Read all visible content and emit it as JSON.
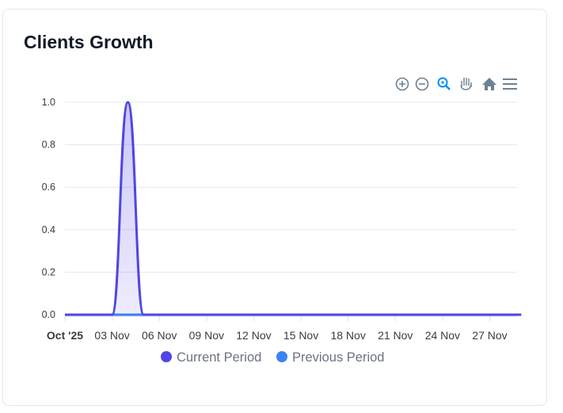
{
  "card": {
    "title": "Clients Growth"
  },
  "toolbar": {
    "icons": [
      "zoom-in-icon",
      "zoom-out-icon",
      "selection-zoom-icon",
      "pan-hand-icon",
      "home-reset-icon",
      "menu-icon"
    ],
    "active_color": "#008ffb",
    "color": "#6e8192"
  },
  "chart_data": {
    "type": "area",
    "title": "Clients Growth",
    "x": [
      "2025-10-31",
      "2025-11-01",
      "2025-11-02",
      "2025-11-03",
      "2025-11-04",
      "2025-11-05",
      "2025-11-06",
      "2025-11-07",
      "2025-11-08",
      "2025-11-09",
      "2025-11-10",
      "2025-11-11",
      "2025-11-12",
      "2025-11-13",
      "2025-11-14",
      "2025-11-15",
      "2025-11-16",
      "2025-11-17",
      "2025-11-18",
      "2025-11-19",
      "2025-11-20",
      "2025-11-21",
      "2025-11-22",
      "2025-11-23",
      "2025-11-24",
      "2025-11-25",
      "2025-11-26",
      "2025-11-27",
      "2025-11-28",
      "2025-11-29"
    ],
    "series": [
      {
        "name": "Current Period",
        "color": "#4f46e5",
        "values": [
          0,
          0,
          0,
          0,
          1,
          0,
          0,
          0,
          0,
          0,
          0,
          0,
          0,
          0,
          0,
          0,
          0,
          0,
          0,
          0,
          0,
          0,
          0,
          0,
          0,
          0,
          0,
          0,
          0,
          0
        ]
      },
      {
        "name": "Previous Period",
        "color": "#3b82f6",
        "values": [
          0,
          0,
          0,
          0,
          0,
          0,
          0,
          0,
          0,
          0,
          0,
          0,
          0,
          0,
          0,
          0,
          0,
          0,
          0,
          0,
          0,
          0,
          0,
          0,
          0,
          0,
          0,
          0,
          0,
          0
        ]
      }
    ],
    "xtick_labels": [
      "Oct '25",
      "03 Nov",
      "06 Nov",
      "09 Nov",
      "12 Nov",
      "15 Nov",
      "18 Nov",
      "21 Nov",
      "24 Nov",
      "27 Nov"
    ],
    "ytick_labels": [
      "0.0",
      "0.2",
      "0.4",
      "0.6",
      "0.8",
      "1.0"
    ],
    "ylim": [
      0,
      1
    ],
    "grid": true,
    "legend": "bottom-center"
  }
}
